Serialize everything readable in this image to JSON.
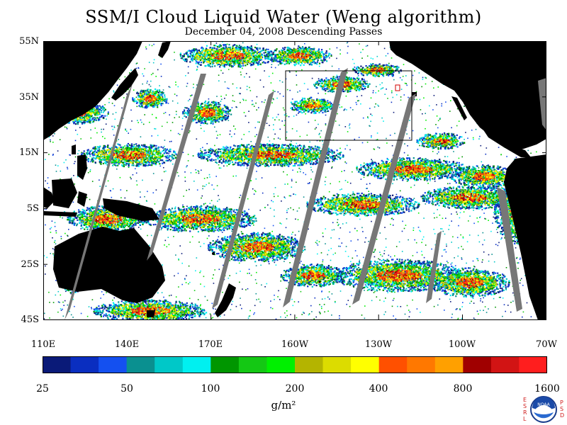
{
  "title": "SSM/I Cloud Liquid Water (Weng algorithm)",
  "subtitle": "December 04, 2008  Descending Passes",
  "map": {
    "projection": "cylindrical equidistant",
    "lat_range": [
      "45S",
      "55N"
    ],
    "lon_range": [
      "110E",
      "70W"
    ],
    "lat_ticks": [
      "55N",
      "35N",
      "15N",
      "5S",
      "25S",
      "45S"
    ],
    "lon_ticks": [
      "110E",
      "140E",
      "170E",
      "160W",
      "130W",
      "100W",
      "70W"
    ],
    "colors": {
      "land": "#000000",
      "clear_ocean": "#ffffff",
      "missing_swath_gap": "#777777",
      "frame": "#000000"
    }
  },
  "colorbar": {
    "labels": [
      "25",
      "50",
      "100",
      "200",
      "400",
      "800",
      "1600"
    ],
    "colors": [
      "#0a1a78",
      "#0a2ec0",
      "#1450f0",
      "#0a9090",
      "#00c8c8",
      "#00f0f0",
      "#009600",
      "#14c814",
      "#00f000",
      "#b4b400",
      "#dcdc00",
      "#ffff00",
      "#ff5000",
      "#ff7800",
      "#ffa000",
      "#a00000",
      "#d21414",
      "#ff1e1e"
    ],
    "units": "g/m²"
  },
  "logo": {
    "left_letters": [
      "E",
      "S",
      "R",
      "L"
    ],
    "right_letters": [
      "P",
      "S",
      "D"
    ],
    "emblem_text": "NOAA"
  }
}
